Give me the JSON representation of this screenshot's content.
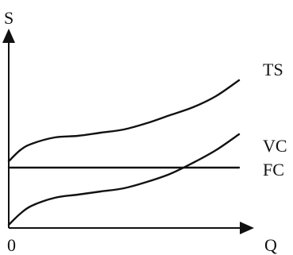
{
  "chart_data": {
    "type": "line",
    "title": "",
    "ylabel": "S",
    "xlabel": "Q",
    "origin_label": "0",
    "grid": false,
    "legend": "none",
    "x_range": [
      0,
      10
    ],
    "y_range": [
      0,
      10
    ],
    "series": [
      {
        "name": "TS",
        "x": [
          0,
          0.5,
          1,
          2,
          3,
          4,
          5,
          6,
          7,
          8,
          9,
          10
        ],
        "y": [
          4.2,
          4.9,
          5.3,
          5.7,
          5.8,
          6.0,
          6.2,
          6.6,
          7.1,
          7.6,
          8.3,
          9.3
        ]
      },
      {
        "name": "VC",
        "x": [
          0,
          0.5,
          1,
          2,
          3,
          4,
          5,
          6,
          7,
          8,
          9,
          10
        ],
        "y": [
          0.2,
          0.9,
          1.4,
          1.9,
          2.1,
          2.3,
          2.5,
          2.9,
          3.4,
          4.1,
          4.9,
          5.9
        ]
      },
      {
        "name": "FC",
        "x": [
          0,
          10
        ],
        "y": [
          3.8,
          3.8
        ]
      }
    ],
    "colors": {
      "line": "#111111",
      "background": "#ffffff"
    }
  }
}
